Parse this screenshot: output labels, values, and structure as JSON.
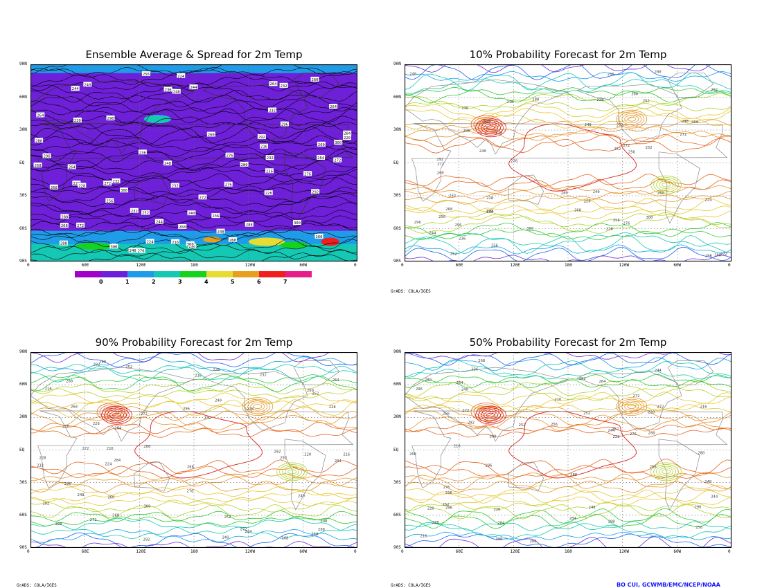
{
  "panels": [
    {
      "id": "p1",
      "title": "Ensemble Average & Spread for 2m Temp",
      "style": "spread"
    },
    {
      "id": "p2",
      "title": "10% Probability Forecast for 2m Temp",
      "style": "prob"
    },
    {
      "id": "p3",
      "title": "90% Probability Forecast for 2m Temp",
      "style": "prob"
    },
    {
      "id": "p4",
      "title": "50% Probability Forecast for 2m Temp",
      "style": "prob"
    }
  ],
  "lat_labels": [
    "90N",
    "60N",
    "30N",
    "EQ",
    "30S",
    "60S",
    "90S"
  ],
  "lon_labels": [
    "0",
    "60E",
    "120E",
    "180",
    "120W",
    "60W",
    "0"
  ],
  "colorbar": {
    "labels": [
      "0",
      "1",
      "2",
      "3",
      "4",
      "5",
      "6",
      "7"
    ],
    "colors": [
      "#a000c8",
      "#6e1fd8",
      "#1e9ce8",
      "#14c8b4",
      "#14d21e",
      "#e6dc32",
      "#e6a01e",
      "#f01e1e",
      "#e61e8c"
    ]
  },
  "credits": {
    "grads": "GrADS: COLA/IGES",
    "author": "BO CUI, GCWMB/EMC/NCEP/NOAA"
  },
  "contour_labels": [
    "272",
    "276",
    "280",
    "284",
    "288",
    "292",
    "296",
    "300",
    "260",
    "264",
    "268",
    "232",
    "236",
    "240",
    "244",
    "248",
    "252",
    "256",
    "220",
    "224",
    "228",
    "216"
  ]
}
